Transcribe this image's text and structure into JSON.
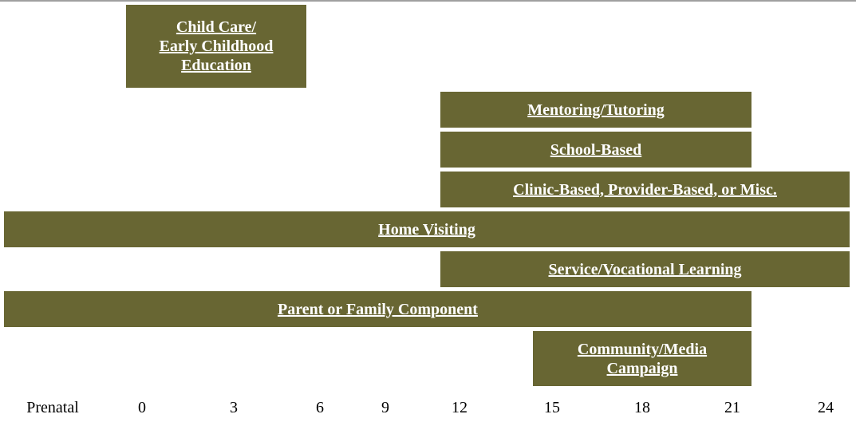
{
  "programs": [
    {
      "lines": [
        "Child Care/",
        "Early Childhood",
        "Education"
      ]
    },
    {
      "lines": [
        "Mentoring/Tutoring"
      ]
    },
    {
      "lines": [
        "School-Based"
      ]
    },
    {
      "lines": [
        "Clinic-Based, Provider-Based, or Misc."
      ]
    },
    {
      "lines": [
        "Home Visiting"
      ]
    },
    {
      "lines": [
        "Service/Vocational Learning"
      ]
    },
    {
      "lines": [
        "Parent or Family Component"
      ]
    },
    {
      "lines": [
        "Community/Media",
        "Campaign"
      ]
    }
  ],
  "axis": [
    "Prenatal",
    "0",
    "3",
    "6",
    "9",
    "12",
    "15",
    "18",
    "21",
    "24"
  ]
}
